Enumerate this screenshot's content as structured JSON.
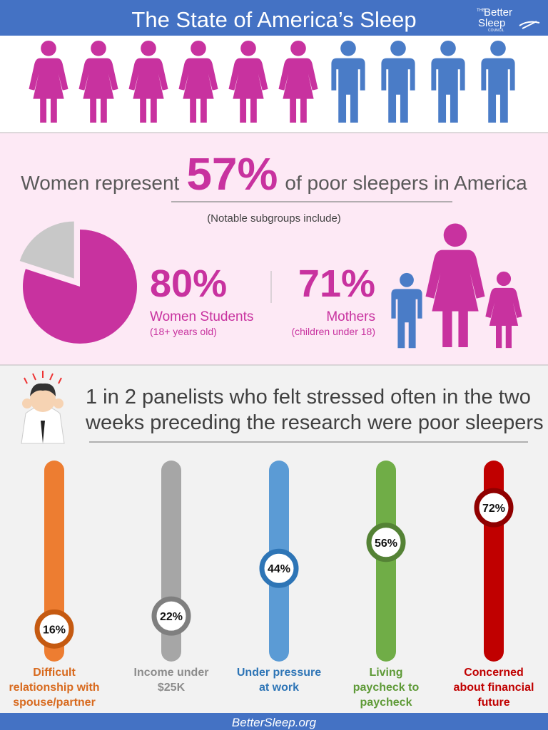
{
  "header": {
    "title": "The State of America’s Sleep",
    "logo": [
      "THE",
      "Better",
      "Sleep",
      "COUNCIL"
    ]
  },
  "women_section": {
    "headline_before": "Women represent",
    "headline_value": "57%",
    "headline_after": "of poor sleepers in America",
    "note": "(Notable subgroups include)",
    "students": {
      "value": {
        "value": 80,
        "label": "80%"
      },
      "name": "Women Students",
      "detail": "(18+ years old)"
    },
    "mothers": {
      "value": "71%",
      "name": "Mothers",
      "detail": "(children under 18)"
    }
  },
  "stress_section": {
    "headline": [
      "1 in 2 panelists who felt stressed often in the two",
      "weeks preceding the research were poor sleepers"
    ],
    "scale": [
      0,
      100
    ],
    "bars": [
      {
        "label": [
          "Difficult",
          "relationship with",
          "spouse/partner"
        ],
        "value": {
          "value": 16,
          "label": "16%"
        },
        "color": "#ed7d31",
        "ring": "#c55a11",
        "text_color": "#d86a1e"
      },
      {
        "label": [
          "Income under",
          "$25K"
        ],
        "value": {
          "value": 22,
          "label": "22%"
        },
        "color": "#a6a6a6",
        "ring": "#7f7f7f",
        "text_color": "#8c8c8c"
      },
      {
        "label": [
          "Under pressure",
          "at work"
        ],
        "value": {
          "value": 44,
          "label": "44%"
        },
        "color": "#5b9bd5",
        "ring": "#2e75b6",
        "text_color": "#2e75b6"
      },
      {
        "label": [
          "Living",
          "paycheck to",
          "paycheck"
        ],
        "value": {
          "value": 56,
          "label": "56%"
        },
        "color": "#70ad47",
        "ring": "#548235",
        "text_color": "#5e9a37"
      },
      {
        "label": [
          "Concerned",
          "about financial",
          "future"
        ],
        "value": {
          "value": 72,
          "label": "72%"
        },
        "color": "#c00000",
        "ring": "#900000",
        "text_color": "#c00000"
      }
    ]
  },
  "footer": "BetterSleep.org"
}
